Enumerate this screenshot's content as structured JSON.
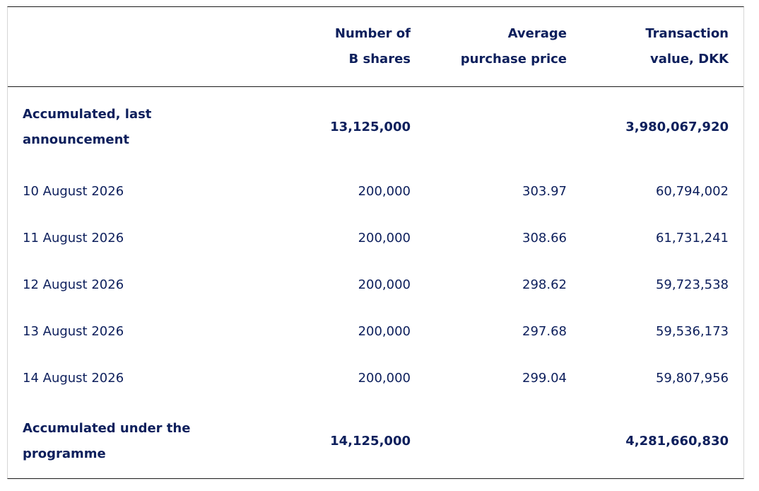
{
  "table": {
    "headers": [
      "",
      "Number of B shares",
      "Average purchase price",
      "Transaction value, DKK"
    ],
    "header_lines": {
      "shares": [
        "Number of",
        "B shares"
      ],
      "price": [
        "Average",
        "purchase price"
      ],
      "value": [
        "Transaction",
        "value, DKK"
      ]
    },
    "accumulated_last": {
      "label_lines": [
        "Accumulated, last",
        "announcement"
      ],
      "shares": "13,125,000",
      "price": "",
      "value": "3,980,067,920"
    },
    "rows": [
      {
        "date": "10 August 2026",
        "shares": "200,000",
        "price": "303.97",
        "value": "60,794,002"
      },
      {
        "date": "11 August 2026",
        "shares": "200,000",
        "price": "308.66",
        "value": "61,731,241"
      },
      {
        "date": "12 August 2026",
        "shares": "200,000",
        "price": "298.62",
        "value": "59,723,538"
      },
      {
        "date": "13 August 2026",
        "shares": "200,000",
        "price": "297.68",
        "value": "59,536,173"
      },
      {
        "date": "14 August 2026",
        "shares": "200,000",
        "price": "299.04",
        "value": "59,807,956"
      }
    ],
    "accumulated_programme": {
      "label_lines": [
        "Accumulated under the",
        "programme"
      ],
      "shares": "14,125,000",
      "price": "",
      "value": "4,281,660,830"
    }
  },
  "colors": {
    "text": "#0d1f5c",
    "rule": "#1a1a1a",
    "frame_side": "#d6d6d6"
  }
}
